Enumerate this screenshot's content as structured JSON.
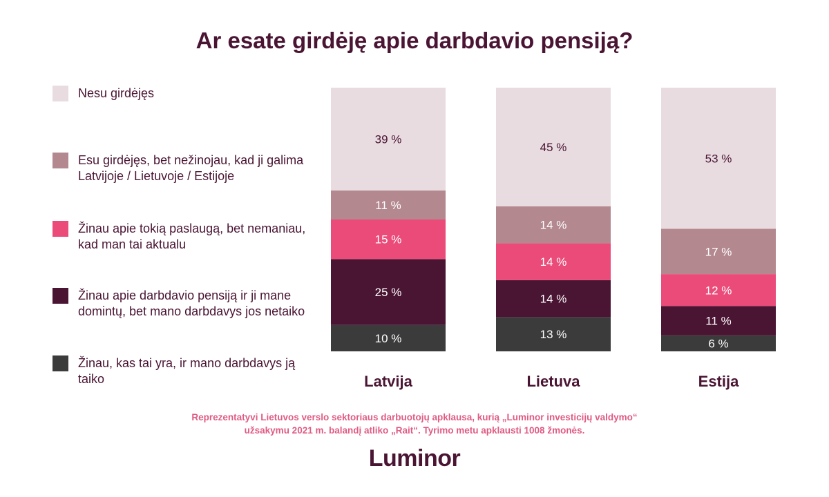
{
  "chart_data": {
    "type": "bar",
    "stacked": true,
    "title": "Ar esate girdėję apie darbdavio pensiją?",
    "categories": [
      "Latvija",
      "Lietuva",
      "Estija"
    ],
    "ylim": [
      0,
      100
    ],
    "value_suffix": " %",
    "legend_position": "left",
    "series": [
      {
        "name": "Žinau, kas tai yra, ir mano darbdavys ją taiko",
        "color": "#3b3b3b",
        "label_color": "#ffffff",
        "values": [
          10,
          13,
          6
        ]
      },
      {
        "name": "Žinau apie darbdavio pensiją ir ji mane domintų, bet mano darbdavys jos netaiko",
        "color": "#4a1433",
        "label_color": "#ffffff",
        "values": [
          25,
          14,
          11
        ]
      },
      {
        "name": "Žinau apie tokią paslaugą, bet nemaniau, kad man tai aktualu",
        "color": "#ea4b79",
        "label_color": "#ffffff",
        "values": [
          15,
          14,
          12
        ]
      },
      {
        "name": "Esu girdėjęs, bet nežinojau, kad ji galima Latvijoje / Lietuvoje / Estijoje",
        "color": "#b3888f",
        "label_color": "#ffffff",
        "values": [
          11,
          14,
          17
        ]
      },
      {
        "name": "Nesu girdėjęs",
        "color": "#e8dce0",
        "label_color": "#4a1433",
        "values": [
          39,
          45,
          53
        ]
      }
    ]
  },
  "legend_order": [
    4,
    3,
    2,
    1,
    0
  ],
  "footnote": {
    "line1": "Reprezentatyvi Lietuvos verslo sektoriaus darbuotojų apklausa, kurią „Luminor investicijų valdymo“",
    "line2": "užsakymu 2021 m. balandį atliko „Rait“.  Tyrimo metu apklausti 1008 žmonės."
  },
  "logo": "Luminor"
}
